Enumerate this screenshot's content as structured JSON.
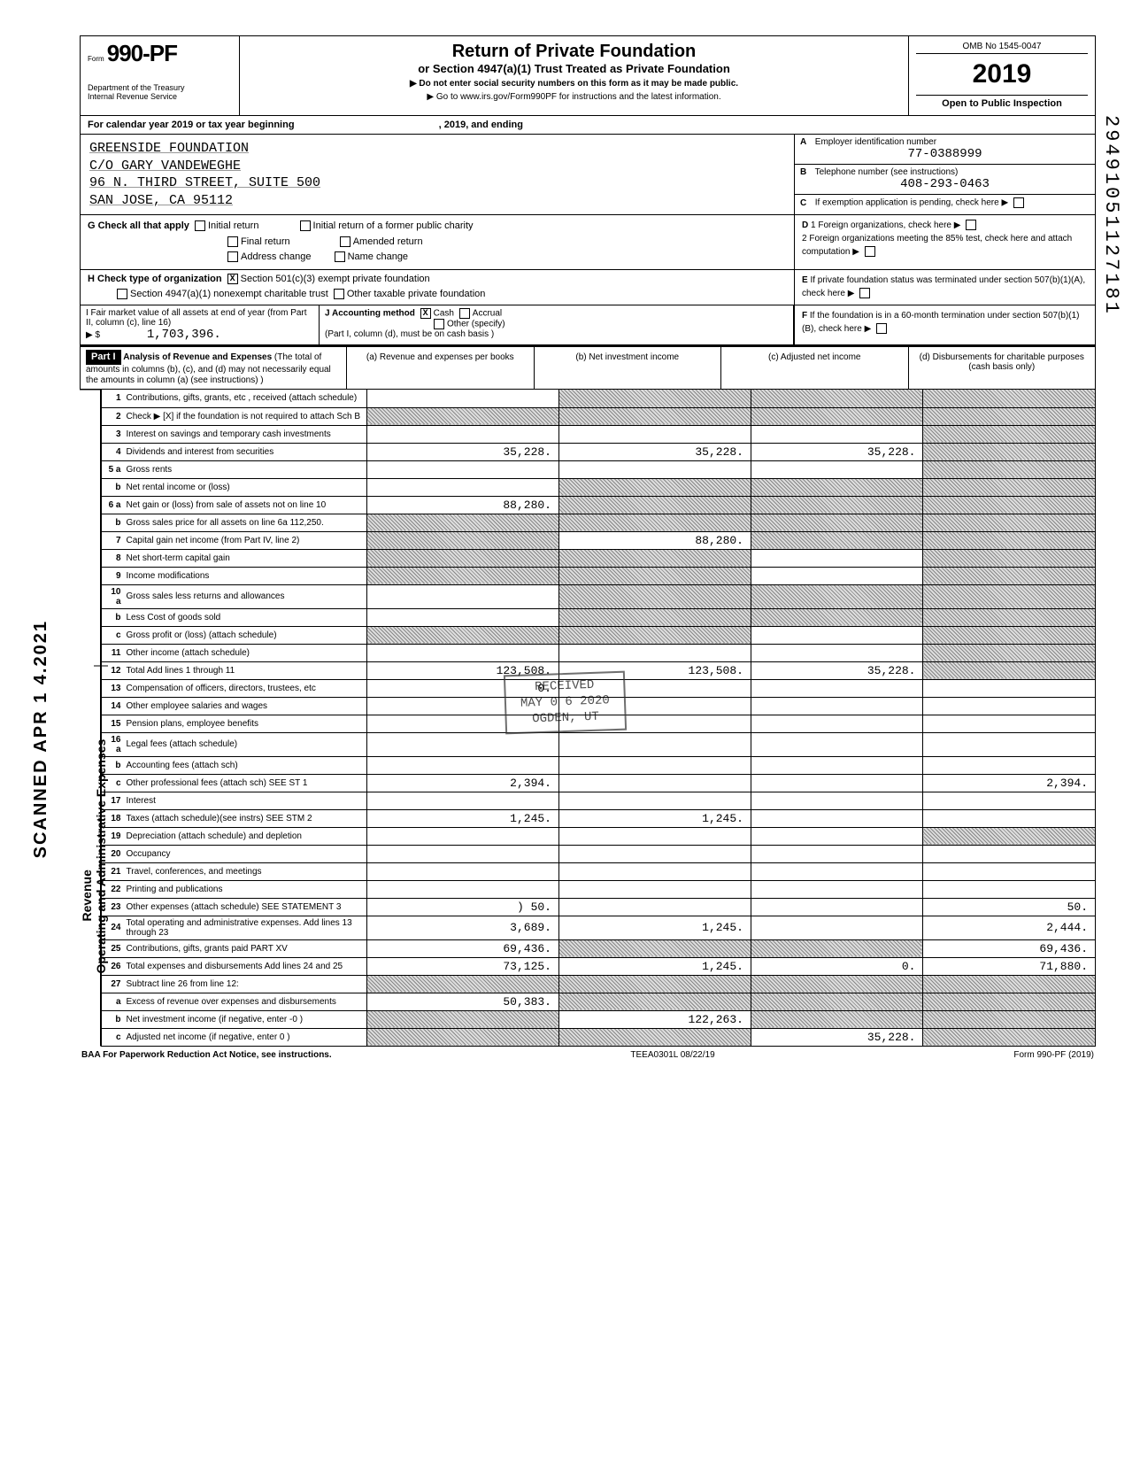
{
  "form": {
    "number_prefix": "Form",
    "number": "990-PF",
    "dept": "Department of the Treasury",
    "irs": "Internal Revenue Service",
    "title": "Return of Private Foundation",
    "subtitle": "or Section 4947(a)(1) Trust Treated as Private Foundation",
    "note1": "▶ Do not enter social security numbers on this form as it may be made public.",
    "note2": "▶ Go to www.irs.gov/Form990PF for instructions and the latest information.",
    "omb": "OMB No 1545-0047",
    "year": "2019",
    "inspection": "Open to Public Inspection",
    "cal_year": "For calendar year 2019 or tax year beginning",
    "cal_mid": ", 2019, and ending",
    "footer_baa": "BAA For Paperwork Reduction Act Notice, see instructions.",
    "footer_code": "TEEA0301L 08/22/19",
    "footer_form": "Form 990-PF (2019)"
  },
  "entity": {
    "name": "GREENSIDE FOUNDATION",
    "care_of": "C/O GARY VANDEWEGHE",
    "street": "96 N. THIRD STREET, SUITE 500",
    "city": "SAN JOSE, CA 95112",
    "ein_label": "Employer identification number",
    "ein": "77-0388999",
    "phone_label": "Telephone number (see instructions)",
    "phone": "408-293-0463",
    "exempt_label": "If exemption application is pending, check here"
  },
  "section_g": {
    "label": "G   Check all that apply",
    "initial": "Initial return",
    "initial_former": "Initial return of a former public charity",
    "final": "Final return",
    "amended": "Amended return",
    "address": "Address change",
    "name_change": "Name change"
  },
  "section_h": {
    "label": "H   Check type of organization",
    "opt1": "Section 501(c)(3) exempt private foundation",
    "opt2": "Section 4947(a)(1) nonexempt charitable trust",
    "opt3": "Other taxable private foundation"
  },
  "section_i": {
    "label": "I    Fair market value of all assets at end of year (from Part II, column (c), line 16)",
    "arrow": "▶ $",
    "value": "1,703,396."
  },
  "section_j": {
    "label": "J    Accounting method",
    "cash": "Cash",
    "accrual": "Accrual",
    "other": "Other (specify)",
    "note": "(Part I, column (d), must be on cash basis )"
  },
  "section_d": {
    "d1": "1  Foreign organizations, check here",
    "d2": "2  Foreign organizations meeting the 85% test, check here and attach computation",
    "e": "If private foundation status was terminated under section 507(b)(1)(A), check here",
    "f": "If the foundation is in a 60-month termination under section 507(b)(1)(B), check here"
  },
  "part1": {
    "header": "Part I",
    "title": "Analysis of Revenue and Expenses",
    "desc": "(The total of amounts in columns (b), (c), and (d) may not necessarily equal the amounts in column (a) (see instructions) )",
    "col_a": "(a) Revenue and expenses per books",
    "col_b": "(b) Net investment income",
    "col_c": "(c) Adjusted net income",
    "col_d": "(d) Disbursements for charitable purposes (cash basis only)",
    "side_rev": "Revenue",
    "side_exp": "Operating and Administrative Expenses"
  },
  "rows": [
    {
      "n": "1",
      "label": "Contributions, gifts, grants, etc , received (attach schedule)",
      "a": "",
      "b": "shaded",
      "c": "shaded",
      "d": "shaded"
    },
    {
      "n": "2",
      "label": "Check ▶ [X] if the foundation is not required to attach Sch B",
      "a": "shaded",
      "b": "shaded",
      "c": "shaded",
      "d": "shaded"
    },
    {
      "n": "3",
      "label": "Interest on savings and temporary cash investments",
      "a": "",
      "b": "",
      "c": "",
      "d": "shaded"
    },
    {
      "n": "4",
      "label": "Dividends and interest from securities",
      "a": "35,228.",
      "b": "35,228.",
      "c": "35,228.",
      "d": "shaded"
    },
    {
      "n": "5 a",
      "label": "Gross rents",
      "a": "",
      "b": "",
      "c": "",
      "d": "shaded"
    },
    {
      "n": "b",
      "label": "Net rental income or (loss)",
      "a": "",
      "b": "shaded",
      "c": "shaded",
      "d": "shaded"
    },
    {
      "n": "6 a",
      "label": "Net gain or (loss) from sale of assets not on line 10",
      "a": "88,280.",
      "b": "shaded",
      "c": "shaded",
      "d": "shaded"
    },
    {
      "n": "b",
      "label": "Gross sales price for all assets on line 6a            112,250.",
      "a": "shaded",
      "b": "shaded",
      "c": "shaded",
      "d": "shaded"
    },
    {
      "n": "7",
      "label": "Capital gain net income (from Part IV, line 2)",
      "a": "shaded",
      "b": "88,280.",
      "c": "shaded",
      "d": "shaded"
    },
    {
      "n": "8",
      "label": "Net short-term capital gain",
      "a": "shaded",
      "b": "shaded",
      "c": "",
      "d": "shaded"
    },
    {
      "n": "9",
      "label": "Income modifications",
      "a": "shaded",
      "b": "shaded",
      "c": "",
      "d": "shaded"
    },
    {
      "n": "10 a",
      "label": "Gross sales less returns and allowances",
      "a": "",
      "b": "shaded",
      "c": "shaded",
      "d": "shaded"
    },
    {
      "n": "b",
      "label": "Less Cost of goods sold",
      "a": "",
      "b": "shaded",
      "c": "shaded",
      "d": "shaded"
    },
    {
      "n": "c",
      "label": "Gross profit or (loss) (attach schedule)",
      "a": "shaded",
      "b": "shaded",
      "c": "",
      "d": "shaded"
    },
    {
      "n": "11",
      "label": "Other income (attach schedule)",
      "a": "",
      "b": "",
      "c": "",
      "d": "shaded"
    },
    {
      "n": "12",
      "label": "Total Add lines 1 through 11",
      "a": "123,508.",
      "b": "123,508.",
      "c": "35,228.",
      "d": "shaded"
    },
    {
      "n": "13",
      "label": "Compensation of officers, directors, trustees, etc",
      "a": "0.",
      "b": "",
      "c": "",
      "d": ""
    },
    {
      "n": "14",
      "label": "Other employee salaries and wages",
      "a": "",
      "b": "",
      "c": "",
      "d": ""
    },
    {
      "n": "15",
      "label": "Pension plans, employee benefits",
      "a": "",
      "b": "",
      "c": "",
      "d": ""
    },
    {
      "n": "16 a",
      "label": "Legal fees (attach schedule)",
      "a": "",
      "b": "",
      "c": "",
      "d": ""
    },
    {
      "n": "b",
      "label": "Accounting fees (attach sch)",
      "a": "",
      "b": "",
      "c": "",
      "d": ""
    },
    {
      "n": "c",
      "label": "Other professional fees (attach sch)   SEE ST 1",
      "a": "2,394.",
      "b": "",
      "c": "",
      "d": "2,394."
    },
    {
      "n": "17",
      "label": "Interest",
      "a": "",
      "b": "",
      "c": "",
      "d": ""
    },
    {
      "n": "18",
      "label": "Taxes (attach schedule)(see instrs)   SEE STM 2",
      "a": "1,245.",
      "b": "1,245.",
      "c": "",
      "d": ""
    },
    {
      "n": "19",
      "label": "Depreciation (attach schedule) and depletion",
      "a": "",
      "b": "",
      "c": "",
      "d": "shaded"
    },
    {
      "n": "20",
      "label": "Occupancy",
      "a": "",
      "b": "",
      "c": "",
      "d": ""
    },
    {
      "n": "21",
      "label": "Travel, conferences, and meetings",
      "a": "",
      "b": "",
      "c": "",
      "d": ""
    },
    {
      "n": "22",
      "label": "Printing and publications",
      "a": "",
      "b": "",
      "c": "",
      "d": ""
    },
    {
      "n": "23",
      "label": "Other expenses (attach schedule)          SEE STATEMENT 3",
      "a": ") 50.",
      "b": "",
      "c": "",
      "d": "50."
    },
    {
      "n": "24",
      "label": "Total operating and administrative expenses. Add lines 13 through 23",
      "a": "3,689.",
      "b": "1,245.",
      "c": "",
      "d": "2,444."
    },
    {
      "n": "25",
      "label": "Contributions, gifts, grants paid      PART XV",
      "a": "69,436.",
      "b": "shaded",
      "c": "shaded",
      "d": "69,436."
    },
    {
      "n": "26",
      "label": "Total expenses and disbursements Add lines 24 and 25",
      "a": "73,125.",
      "b": "1,245.",
      "c": "0.",
      "d": "71,880."
    },
    {
      "n": "27",
      "label": "Subtract line 26 from line 12:",
      "a": "shaded",
      "b": "shaded",
      "c": "shaded",
      "d": "shaded"
    },
    {
      "n": "a",
      "label": "Excess of revenue over expenses and disbursements",
      "a": "50,383.",
      "b": "shaded",
      "c": "shaded",
      "d": "shaded"
    },
    {
      "n": "b",
      "label": "Net investment income (if negative, enter -0 )",
      "a": "shaded",
      "b": "122,263.",
      "c": "shaded",
      "d": "shaded"
    },
    {
      "n": "c",
      "label": "Adjusted net income (if negative, enter 0 )",
      "a": "shaded",
      "b": "shaded",
      "c": "35,228.",
      "d": "shaded"
    }
  ],
  "stamps": {
    "scanned": "SCANNED APR 1 4.2021",
    "dln": "29491051127181",
    "received": "RECEIVED",
    "received_date": "MAY 0 6 2020",
    "received_loc": "OGDEN, UT"
  }
}
